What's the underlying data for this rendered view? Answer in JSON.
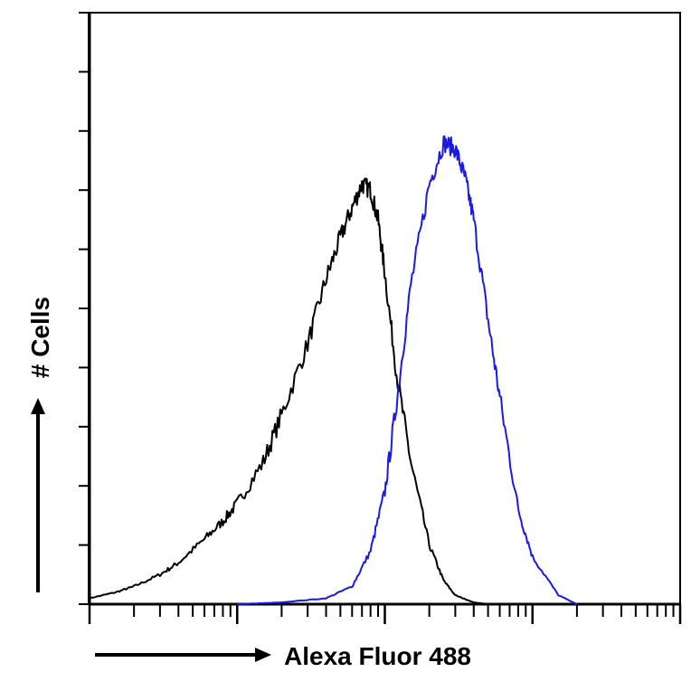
{
  "chart_data": {
    "type": "area",
    "title": "",
    "xlabel": "Alexa Fluor 488",
    "ylabel": "# Cells",
    "x_scale": "log",
    "xlim": [
      1,
      10000
    ],
    "ylim": [
      0,
      100
    ],
    "grid": false,
    "legend": "none",
    "series": [
      {
        "color": "#000000",
        "x": [
          1,
          1.5,
          2,
          3,
          4,
          6,
          8,
          10,
          15,
          20,
          30,
          40,
          50,
          60,
          70,
          80,
          90,
          100,
          120,
          150,
          200,
          250,
          300,
          400,
          500
        ],
        "values": [
          1,
          2,
          3,
          5,
          7,
          11,
          14,
          17,
          24,
          32,
          44,
          55,
          62,
          67,
          71,
          70,
          65,
          56,
          39,
          24,
          10,
          4,
          1.5,
          0.3,
          0
        ]
      },
      {
        "color": "#1a1ae6",
        "x": [
          10,
          20,
          40,
          60,
          80,
          100,
          120,
          150,
          200,
          250,
          300,
          350,
          400,
          500,
          600,
          800,
          1000,
          1500,
          2000
        ],
        "values": [
          0,
          0.3,
          1,
          3,
          9,
          19,
          34,
          54,
          71,
          78,
          77,
          72,
          65,
          48,
          35,
          16,
          8,
          1.5,
          0
        ]
      }
    ]
  }
}
